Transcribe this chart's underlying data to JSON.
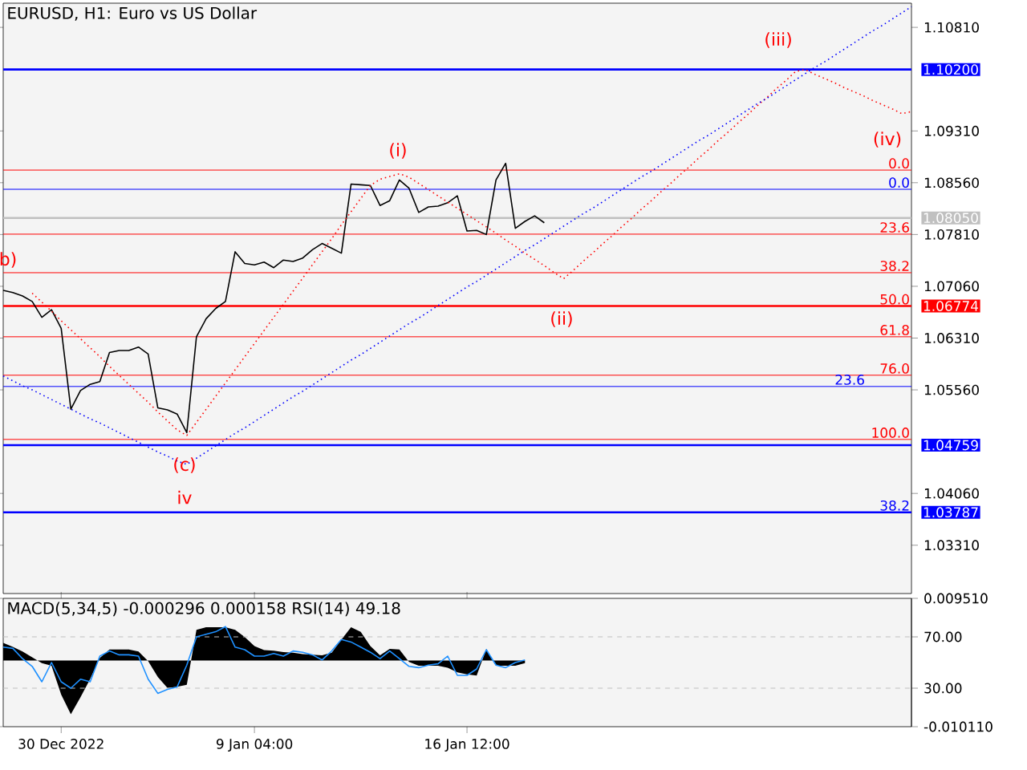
{
  "chart_data": [
    {
      "type": "line",
      "title": "EURUSD, H1:  Euro vs US Dollar",
      "ylim": [
        1.0261,
        1.1116
      ],
      "tick_labels": "y",
      "categories": [
        null,
        null,
        null,
        null,
        null,
        null,
        null,
        null,
        null,
        null,
        null,
        null,
        null,
        null,
        null,
        null,
        null,
        null,
        null,
        null,
        null,
        null,
        null,
        null,
        null,
        null,
        null,
        null,
        null,
        null,
        null,
        null,
        null,
        null,
        null,
        null,
        null,
        null,
        null,
        null,
        null,
        null,
        null,
        null,
        null,
        null,
        null,
        null,
        null,
        null,
        null,
        null,
        null,
        null,
        null,
        null,
        null,
        null,
        null,
        null,
        null,
        null,
        null,
        null,
        null,
        null,
        null,
        null,
        null,
        null,
        null,
        null,
        null,
        null,
        null,
        null,
        null,
        null,
        null,
        null,
        null,
        null,
        null,
        null,
        null,
        null,
        null,
        null,
        null,
        null,
        null,
        null,
        null,
        null,
        null
      ],
      "yticks": [
        {
          "value": 1.1081,
          "label": "1.10810"
        },
        {
          "value": 1.0931,
          "label": "1.09310"
        },
        {
          "value": 1.0856,
          "label": "1.08560"
        },
        {
          "value": 1.0781,
          "label": "1.07810"
        },
        {
          "value": 1.0706,
          "label": "1.07060"
        },
        {
          "value": 1.0631,
          "label": "1.06310"
        },
        {
          "value": 1.0556,
          "label": "1.05560"
        },
        {
          "value": 1.0406,
          "label": "1.04060"
        },
        {
          "value": 1.0331,
          "label": "1.03310"
        }
      ],
      "series": [
        {
          "color": "#000000",
          "values": [
            1.07,
            1.0697,
            1.0692,
            1.0684,
            1.0661,
            1.0672,
            1.0645,
            1.0528,
            1.0555,
            1.0564,
            1.0568,
            1.061,
            1.0613,
            1.0613,
            1.0618,
            1.0608,
            1.053,
            1.0527,
            1.0521,
            1.0494,
            1.0633,
            1.0659,
            1.0674,
            1.0684,
            1.0756,
            1.0739,
            1.0737,
            1.0741,
            1.0733,
            1.0744,
            1.0742,
            1.0747,
            1.0759,
            1.0768,
            1.0761,
            1.0754,
            1.0854,
            1.0853,
            1.0852,
            1.0823,
            1.083,
            1.086,
            1.0848,
            1.0813,
            1.0821,
            1.0822,
            1.0827,
            1.0837,
            1.0786,
            1.0787,
            1.0781,
            1.086,
            1.0884,
            1.079,
            1.08,
            1.0808,
            1.0798,
            null,
            null,
            null,
            null,
            null,
            null,
            null,
            null,
            null,
            null,
            null,
            null,
            null,
            null,
            null,
            null,
            null,
            null,
            null,
            null,
            null,
            null,
            null,
            null,
            null,
            null,
            null,
            null,
            null,
            null,
            null,
            null,
            null,
            null,
            null,
            null,
            null,
            null
          ]
        },
        {
          "color": "#ff0000",
          "line_style": "dotted",
          "values": [
            null,
            null,
            null,
            1.0696,
            1.0683,
            1.067,
            1.0656,
            1.0643,
            1.063,
            1.0617,
            1.0604,
            1.059,
            1.0577,
            1.0564,
            1.0551,
            1.0538,
            1.0524,
            1.0511,
            1.0498,
            1.049,
            1.0509,
            1.0528,
            1.0547,
            1.0566,
            1.0585,
            1.0604,
            1.0623,
            1.0642,
            1.0661,
            1.068,
            1.0699,
            1.0718,
            1.0737,
            1.0756,
            1.0775,
            1.0795,
            1.0814,
            1.0833,
            1.0852,
            1.0861,
            1.0865,
            1.0869,
            1.0864,
            1.0855,
            1.0846,
            1.0837,
            1.0828,
            1.0819,
            1.081,
            1.0801,
            1.0792,
            1.0783,
            1.0773,
            1.0764,
            1.0754,
            1.0745,
            1.0736,
            1.0726,
            1.0717,
            1.0729,
            1.0742,
            1.0754,
            1.0767,
            1.0779,
            1.0792,
            1.0804,
            1.0817,
            1.0829,
            1.0842,
            1.0854,
            1.0867,
            1.0879,
            1.0892,
            1.0904,
            1.0917,
            1.0929,
            1.0942,
            1.0954,
            1.0967,
            1.0979,
            1.0992,
            1.1004,
            1.1017,
            1.102,
            1.1013,
            1.1007,
            1.1001,
            1.0994,
            1.0988,
            1.0982,
            1.0975,
            1.0969,
            1.0963,
            1.0956,
            1.0959
          ]
        },
        {
          "color": "#0000ff",
          "line_style": "dotted",
          "values": [
            1.0576,
            1.0569,
            1.0562,
            1.0556,
            1.0549,
            1.0542,
            1.0535,
            1.0528,
            1.0521,
            1.0514,
            1.0508,
            1.0501,
            1.0494,
            1.0487,
            1.048,
            1.0473,
            1.0466,
            1.046,
            1.0453,
            1.0448,
            1.0457,
            1.0466,
            1.0475,
            1.0484,
            1.0493,
            1.0501,
            1.051,
            1.0519,
            1.0528,
            1.0537,
            1.0546,
            1.0554,
            1.0563,
            1.0572,
            1.0581,
            1.059,
            1.0599,
            1.0607,
            1.0616,
            1.0625,
            1.0634,
            1.0643,
            1.0652,
            1.066,
            1.0669,
            1.0678,
            1.0687,
            1.0696,
            1.0705,
            1.0713,
            1.0722,
            1.0731,
            1.074,
            1.0749,
            1.0758,
            1.0766,
            1.0775,
            1.0784,
            1.0793,
            1.0802,
            1.0811,
            1.0819,
            1.0828,
            1.0837,
            1.0846,
            1.0855,
            1.0864,
            1.0872,
            1.0881,
            1.089,
            1.0899,
            1.0908,
            1.0917,
            1.0925,
            1.0934,
            1.0943,
            1.0952,
            1.0961,
            1.097,
            1.0978,
            1.0987,
            1.0996,
            1.1005,
            1.1014,
            1.1023,
            1.1031,
            1.104,
            1.1049,
            1.1058,
            1.1067,
            1.1076,
            1.1084,
            1.1093,
            1.1102,
            1.1111
          ]
        }
      ],
      "ref_lines": [
        {
          "axis": "y",
          "value": 1.08743,
          "color": "#ff0000"
        },
        {
          "axis": "y",
          "value": 1.07815,
          "color": "#ff0000"
        },
        {
          "axis": "y",
          "value": 1.07257,
          "color": "#ff0000"
        },
        {
          "axis": "y",
          "value": 1.06329,
          "color": "#ff0000"
        },
        {
          "axis": "y",
          "value": 1.05772,
          "color": "#ff0000"
        },
        {
          "axis": "y",
          "value": 1.04842,
          "color": "#ff0000"
        },
        {
          "axis": "y",
          "value": 1.08465,
          "color": "#0000ff"
        },
        {
          "axis": "y",
          "value": 1.05609,
          "color": "#0000ff"
        },
        {
          "axis": "y",
          "value": 1.102,
          "label": "1.10200",
          "color": "#0000ff"
        },
        {
          "axis": "y",
          "value": 1.0805,
          "label": "1.08050",
          "color": "#c0c0c0"
        },
        {
          "axis": "y",
          "value": 1.06774,
          "label": "1.06774",
          "color": "#ff0000"
        },
        {
          "axis": "y",
          "value": 1.04759,
          "label": "1.04759",
          "color": "#0000ff"
        },
        {
          "axis": "y",
          "value": 1.03787,
          "label": "1.03787",
          "color": "#0000ff"
        }
      ],
      "annotations": [
        "b)",
        "(i)",
        "(ii)",
        "(iii)",
        "(iv)",
        "(c)",
        "iv",
        {
          "text": "0.0",
          "y": 1.08743
        },
        {
          "text": "23.6",
          "y": 1.07815
        },
        {
          "text": "38.2",
          "y": 1.07257
        },
        {
          "text": "50.0",
          "y": 1.06774
        },
        {
          "text": "61.8",
          "y": 1.06329
        },
        {
          "text": "76.0",
          "y": 1.05772
        },
        {
          "text": "100.0",
          "y": 1.04842
        },
        {
          "text": "0.0",
          "y": 1.08465
        },
        {
          "text": "23.6",
          "y": 1.05609
        },
        {
          "text": "38.2",
          "y": 1.03787
        }
      ]
    },
    {
      "type": "area",
      "title": "MACD(5,34,5) -0.000296 0.000158 RSI(14) 49.18",
      "ylim": [
        -0.01011,
        0.00951
      ],
      "y2lim": [
        0,
        100
      ],
      "categories": [
        null,
        null,
        null,
        null,
        null,
        null,
        "30 Dec 2022",
        null,
        null,
        null,
        null,
        null,
        null,
        null,
        null,
        null,
        null,
        null,
        null,
        null,
        null,
        null,
        null,
        null,
        null,
        null,
        "9 Jan 04:00",
        null,
        null,
        null,
        null,
        null,
        null,
        null,
        null,
        null,
        null,
        null,
        null,
        null,
        null,
        null,
        null,
        null,
        null,
        null,
        null,
        null,
        "16 Jan 12:00",
        null,
        null,
        null,
        null,
        null,
        null,
        null,
        null,
        null,
        null,
        null,
        null,
        null,
        null,
        null,
        null,
        null,
        null,
        null,
        null,
        null,
        null,
        null,
        null,
        null,
        null,
        null,
        null,
        null,
        null,
        null,
        null,
        null,
        null,
        null,
        null,
        null,
        null,
        null,
        null,
        null,
        null,
        null,
        null,
        null,
        null
      ],
      "yticks": [
        {
          "value": 0.00951,
          "label": "0.009510"
        },
        {
          "value": -0.01011,
          "label": "-0.010110"
        }
      ],
      "y2ticks": [
        {
          "value": 70,
          "label": "70.00"
        },
        {
          "value": 30,
          "label": "30.00"
        }
      ],
      "series": [
        {
          "color": "#000000",
          "values": [
            0.0027,
            0.0021,
            0.0014,
            0.0005,
            -0.0004,
            -0.0008,
            -0.0052,
            -0.0082,
            -0.0056,
            -0.0028,
            0.0004,
            0.0017,
            0.0017,
            0.0017,
            0.0014,
            -0.0001,
            -0.0025,
            -0.0042,
            -0.004,
            -0.0037,
            0.0047,
            0.0051,
            0.0051,
            0.0051,
            0.0047,
            0.0036,
            0.0022,
            0.0016,
            0.0015,
            0.0013,
            0.0012,
            0.001,
            0.0009,
            0.0008,
            0.0012,
            0.0032,
            0.0051,
            0.0044,
            0.0022,
            0.0008,
            0.0018,
            0.0017,
            -0.0002,
            -0.0008,
            -0.0008,
            -0.0008,
            -0.0011,
            -0.0018,
            -0.0021,
            -0.0023,
            0.0018,
            -0.0008,
            -0.0008,
            -0.0008,
            -0.0004,
            null,
            null,
            null,
            null,
            null,
            null,
            null,
            null,
            null,
            null,
            null,
            null,
            null,
            null,
            null,
            null,
            null,
            null,
            null,
            null,
            null,
            null,
            null,
            null,
            null,
            null,
            null,
            null,
            null,
            null,
            null,
            null,
            null,
            null,
            null,
            null,
            null,
            null,
            null,
            null
          ]
        },
        {
          "type": "line",
          "axis": "y2",
          "color": "#1e90ff",
          "values": [
            62,
            61,
            53,
            47,
            35,
            50,
            35,
            30,
            37,
            35,
            55,
            59,
            56,
            56,
            55,
            37,
            26,
            29,
            31,
            48,
            70,
            72,
            74,
            78,
            62,
            60,
            55,
            55,
            57,
            55,
            59,
            58,
            56,
            52,
            59,
            68,
            66,
            62,
            58,
            53,
            59,
            53,
            47,
            46,
            48,
            49,
            55,
            40,
            40,
            45,
            60,
            48,
            46,
            50,
            52,
            null,
            null,
            null,
            null,
            null,
            null,
            null,
            null,
            null,
            null,
            null,
            null,
            null,
            null,
            null,
            null,
            null,
            null,
            null,
            null,
            null,
            null,
            null,
            null,
            null,
            null,
            null,
            null,
            null,
            null,
            null,
            null,
            null,
            null,
            null,
            null,
            null,
            null,
            null,
            null
          ]
        }
      ],
      "ref_lines": [
        {
          "axis": "y2",
          "value": 70,
          "color": "#c0c0c0",
          "line_style": "dashed"
        },
        {
          "axis": "y2",
          "value": 30,
          "color": "#c0c0c0",
          "line_style": "dashed"
        }
      ]
    }
  ]
}
